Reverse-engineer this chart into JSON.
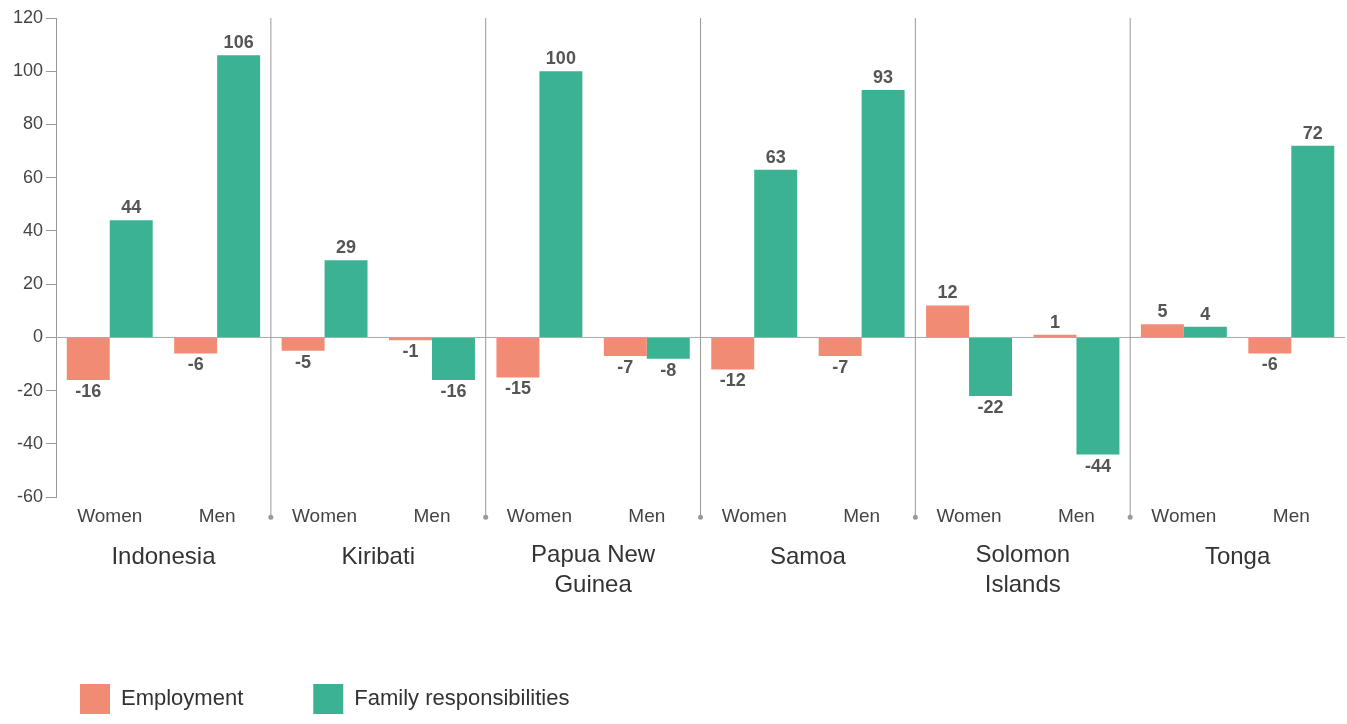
{
  "chart_data": {
    "type": "bar",
    "categories": [
      "Women",
      "Men",
      "Women",
      "Men",
      "Women",
      "Men",
      "Women",
      "Men",
      "Women",
      "Men",
      "Women",
      "Men"
    ],
    "series": [
      {
        "name": "Employment",
        "color": "#f28b74",
        "values": [
          -16,
          -6,
          -5,
          -1,
          -15,
          -7,
          -12,
          -7,
          12,
          1,
          5,
          -6
        ]
      },
      {
        "name": "Family responsibilities",
        "color": "#3bb393",
        "values": [
          44,
          106,
          29,
          -16,
          100,
          -8,
          63,
          93,
          -22,
          -44,
          4,
          72
        ]
      }
    ],
    "annotations": [
      "Indonesia",
      "Kiribati",
      "Papua New Guinea",
      "Samoa",
      "Solomon Islands",
      "Tonga"
    ],
    "ylim": [
      -60,
      120
    ],
    "yticks": [
      -60,
      -40,
      -20,
      0,
      20,
      40,
      60,
      80,
      100,
      120
    ],
    "grid": false,
    "data_labels": true,
    "legend": "bottom left"
  }
}
